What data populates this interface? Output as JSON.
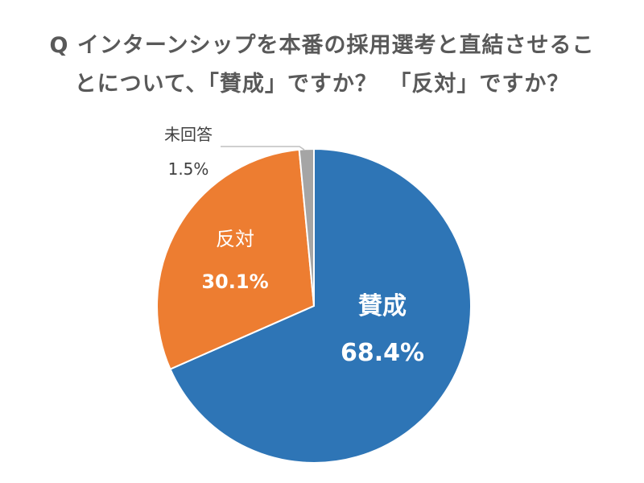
{
  "chart_data": {
    "type": "pie",
    "title_lines": [
      "Q インターンシップを本番の採用選考と直結させるこ",
      "とについて、「賛成」ですか？　「反対」ですか？"
    ],
    "slices": [
      {
        "label": "賛成",
        "value": 68.4,
        "value_text": "68.4%",
        "color": "#2e75b6",
        "label_color": "#ffffff"
      },
      {
        "label": "反対",
        "value": 30.1,
        "value_text": "30.1%",
        "color": "#ed7d31",
        "label_color": "#ffffff"
      },
      {
        "label": "未回答",
        "value": 1.5,
        "value_text": "1.5%",
        "color": "#a5a5a5",
        "label_color": "#404040"
      }
    ],
    "start": "12 o'clock",
    "direction": "clockwise"
  }
}
